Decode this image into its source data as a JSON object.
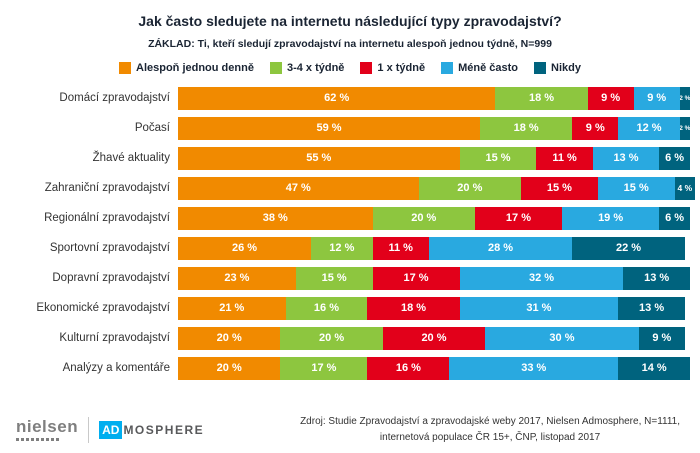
{
  "title": "Jak často sledujete na internetu následující typy zpravodajství?",
  "subtitle": "ZÁKLAD: Ti, kteří sledují zpravodajství na internetu alespoň jednou týdně, N=999",
  "chart_data": {
    "type": "bar",
    "stacked": true,
    "orientation": "horizontal",
    "value_suffix": " %",
    "x_range": [
      0,
      100
    ],
    "grid": false,
    "legend_position": "top",
    "categories": [
      "Domácí zpravodajství",
      "Počasí",
      "Žhavé aktuality",
      "Zahraniční zpravodajství",
      "Regionální zpravodajství",
      "Sportovní zpravodajství",
      "Dopravní zpravodajství",
      "Ekonomické zpravodajství",
      "Kulturní zpravodajství",
      "Analýzy a komentáře"
    ],
    "series": [
      {
        "name": "Alespoň jednou denně",
        "color": "#F18A00",
        "values": [
          62,
          59,
          55,
          47,
          38,
          26,
          23,
          21,
          20,
          20
        ]
      },
      {
        "name": "3-4 x týdně",
        "color": "#8DC63F",
        "values": [
          18,
          18,
          15,
          20,
          20,
          12,
          15,
          16,
          20,
          17
        ]
      },
      {
        "name": "1 x týdně",
        "color": "#E2001A",
        "values": [
          9,
          9,
          11,
          15,
          17,
          11,
          17,
          18,
          20,
          16
        ]
      },
      {
        "name": "Méně často",
        "color": "#29A9E0",
        "values": [
          9,
          12,
          13,
          15,
          19,
          28,
          32,
          31,
          30,
          33
        ]
      },
      {
        "name": "Nikdy",
        "color": "#00637E",
        "values": [
          2,
          2,
          6,
          4,
          6,
          22,
          13,
          13,
          9,
          14
        ]
      }
    ]
  },
  "footer": {
    "logo_nielsen": "nielsen",
    "logo_ad": "AD",
    "logo_mosphere": "MOSPHERE",
    "source_line1": "Zdroj: Studie Zpravodajství a zpravodajské weby 2017, Nielsen Admosphere, N=1111,",
    "source_line2": "internetová populace ČR 15+, ČNP, listopad 2017"
  }
}
